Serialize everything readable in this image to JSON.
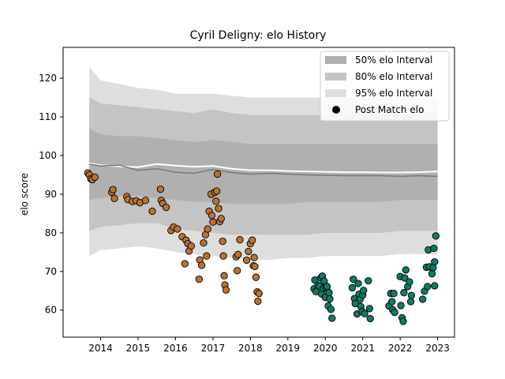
{
  "chart_data": {
    "type": "scatter",
    "title": "Cyril Deligny: elo History",
    "xlabel": "",
    "ylabel": "elo score",
    "xlim": [
      2013.0,
      2023.45
    ],
    "ylim": [
      53.0,
      128.0
    ],
    "xticks": [
      2014,
      2015,
      2016,
      2017,
      2018,
      2019,
      2020,
      2021,
      2022,
      2023
    ],
    "yticks": [
      60,
      70,
      80,
      90,
      100,
      110,
      120
    ],
    "grid": false,
    "legend_position": "top-right",
    "legend": [
      {
        "label": "50% elo Interval",
        "kind": "band",
        "color": "#b0b0b0"
      },
      {
        "label": "80% elo Interval",
        "kind": "band",
        "color": "#c4c4c4"
      },
      {
        "label": "95% elo Interval",
        "kind": "band",
        "color": "#dedede"
      },
      {
        "label": "Post Match elo",
        "kind": "marker",
        "color": "#000000"
      }
    ],
    "bands": {
      "x": [
        2013.7,
        2014.0,
        2014.5,
        2015.0,
        2015.5,
        2016.0,
        2016.5,
        2017.0,
        2017.5,
        2018.0,
        2018.5,
        2019.0,
        2019.5,
        2020.0,
        2020.5,
        2021.0,
        2021.5,
        2022.0,
        2022.5,
        2023.0
      ],
      "p95_upper": [
        123,
        119.5,
        118.5,
        117.5,
        117,
        116,
        116,
        116,
        115.5,
        115,
        115,
        115,
        115,
        115,
        115,
        115,
        114.5,
        114.5,
        115,
        115
      ],
      "p95_lower": [
        74,
        75.5,
        76,
        76.5,
        76,
        75,
        74.5,
        74,
        73.5,
        73,
        73,
        73.5,
        73.5,
        74,
        74,
        74,
        74,
        74.5,
        74.5,
        74.5
      ],
      "p80_upper": [
        115,
        113.5,
        113,
        112.5,
        112,
        111.5,
        111,
        112,
        111,
        110.5,
        110.5,
        110.5,
        110.5,
        110.5,
        110.5,
        110.5,
        110.5,
        110.5,
        111,
        111
      ],
      "p80_lower": [
        80.5,
        81.5,
        82,
        82.5,
        82.5,
        81,
        80.5,
        80,
        79.5,
        79.5,
        79.5,
        79.5,
        79.5,
        80,
        80,
        80,
        80,
        80.5,
        80.5,
        80.5
      ],
      "p50_upper": [
        107,
        105.5,
        105,
        105,
        104.5,
        104,
        103.5,
        104,
        103.5,
        103,
        103,
        103,
        103,
        103,
        103,
        103,
        103,
        103,
        103,
        103
      ],
      "p50_lower": [
        88.5,
        89,
        89.5,
        89.5,
        89,
        88.5,
        88,
        88,
        87.5,
        87.5,
        87.5,
        87.5,
        88,
        88,
        88,
        88,
        88,
        88.5,
        88.5,
        88.5
      ]
    },
    "lines": [
      {
        "name": "white",
        "color": "#ffffff",
        "x": [
          2013.7,
          2014.0,
          2014.5,
          2015.0,
          2015.5,
          2016.0,
          2016.5,
          2017.0,
          2017.5,
          2018.0,
          2018.5,
          2019.0,
          2019.5,
          2020.0,
          2020.5,
          2021.0,
          2021.5,
          2022.0,
          2022.5,
          2023.0
        ],
        "y": [
          98,
          97.5,
          97.2,
          97,
          97.8,
          97.4,
          97.1,
          97.3,
          96.6,
          96.2,
          96.2,
          96.0,
          95.9,
          95.8,
          95.7,
          95.7,
          95.6,
          95.6,
          95.7,
          95.9
        ]
      },
      {
        "name": "grey",
        "color": "#777777",
        "x": [
          2013.7,
          2014.0,
          2014.5,
          2015.0,
          2015.5,
          2016.0,
          2016.5,
          2017.0,
          2017.5,
          2018.0,
          2018.5,
          2019.0,
          2019.5,
          2020.0,
          2020.5,
          2021.0,
          2021.5,
          2022.0,
          2022.5,
          2023.0
        ],
        "y": [
          97.8,
          97.3,
          97.5,
          96.2,
          96.6,
          95.7,
          95.4,
          96.4,
          95.6,
          95.2,
          95.4,
          95.2,
          95.0,
          94.9,
          94.8,
          94.8,
          94.8,
          94.6,
          94.8,
          94.6
        ]
      }
    ],
    "series": [
      {
        "color": "#b87333",
        "x": [
          2013.66,
          2013.7,
          2013.74,
          2013.78,
          2013.85,
          2014.3,
          2014.33,
          2014.37,
          2014.7,
          2014.73,
          2014.85,
          2014.95,
          2015.05,
          2015.2,
          2015.38,
          2015.6,
          2015.62,
          2015.66,
          2015.75,
          2015.88,
          2015.95,
          2016.05,
          2016.18,
          2016.25,
          2016.28,
          2016.33,
          2016.36,
          2016.42,
          2016.63,
          2016.65,
          2016.7,
          2016.75,
          2016.8,
          2016.83,
          2016.86,
          2016.9,
          2016.95,
          2016.97,
          2017.0,
          2017.05,
          2017.08,
          2017.1,
          2017.12,
          2017.15,
          2017.18,
          2017.22,
          2017.26,
          2017.28,
          2017.3,
          2017.32,
          2017.35,
          2017.62,
          2017.65,
          2017.67,
          2017.72,
          2017.9,
          2017.95,
          2018.0,
          2018.05,
          2018.08,
          2018.1,
          2018.12,
          2018.15,
          2018.18,
          2018.2,
          2018.23
        ],
        "y": [
          95.5,
          95.0,
          94.0,
          93.8,
          94.4,
          90.5,
          91.2,
          88.9,
          89.4,
          88.6,
          88.1,
          88.3,
          87.8,
          88.4,
          85.6,
          91.3,
          88.4,
          87.6,
          86.6,
          80.6,
          81.5,
          81.0,
          79.0,
          72.0,
          78.1,
          77.2,
          75.3,
          76.6,
          68.0,
          73.0,
          71.6,
          77.4,
          79.5,
          74.0,
          81.0,
          85.6,
          90.0,
          84.5,
          82.8,
          90.5,
          88.2,
          90.8,
          95.2,
          86.3,
          82.9,
          83.7,
          77.8,
          74.0,
          68.9,
          66.5,
          65.2,
          73.8,
          70.2,
          74.4,
          78.2,
          72.9,
          75.2,
          77.2,
          78.1,
          71.5,
          73.6,
          71.3,
          68.5,
          64.7,
          62.3,
          64.3
        ]
      },
      {
        "color": "#117a65",
        "x": [
          2019.7,
          2019.72,
          2019.75,
          2019.8,
          2019.85,
          2019.88,
          2019.9,
          2019.92,
          2019.95,
          2019.97,
          2020.0,
          2020.02,
          2020.05,
          2020.08,
          2020.1,
          2020.12,
          2020.15,
          2020.18,
          2020.72,
          2020.75,
          2020.78,
          2020.8,
          2020.85,
          2020.88,
          2020.9,
          2020.93,
          2020.95,
          2020.98,
          2021.0,
          2021.02,
          2021.05,
          2021.15,
          2021.18,
          2021.2,
          2021.7,
          2021.75,
          2021.78,
          2021.8,
          2021.83,
          2021.85,
          2022.0,
          2022.02,
          2022.05,
          2022.08,
          2022.1,
          2022.12,
          2022.15,
          2022.2,
          2022.25,
          2022.28,
          2022.6,
          2022.65,
          2022.7,
          2022.73,
          2022.75,
          2022.78,
          2022.85,
          2022.88,
          2022.92,
          2022.95
        ],
        "y": [
          65.5,
          67.8,
          64.8,
          66.4,
          66.2,
          68.3,
          64.2,
          68.8,
          65.6,
          67.5,
          63.3,
          65.8,
          66.1,
          61.1,
          64.5,
          62.9,
          60.2,
          57.9,
          65.8,
          68.0,
          63.0,
          61.7,
          59.0,
          66.9,
          64.1,
          62.8,
          60.9,
          59.6,
          63.9,
          65.1,
          59.1,
          67.6,
          60.4,
          57.8,
          61.1,
          64.3,
          62.2,
          60.1,
          64.3,
          59.4,
          68.7,
          61.2,
          58.0,
          57.1,
          64.5,
          68.3,
          70.4,
          66.1,
          67.3,
          62.2,
          62.8,
          64.9,
          71.1,
          66.1,
          75.6,
          71.2,
          69.4,
          71.0,
          66.3,
          79.2
        ]
      }
    ],
    "extra_points": [
      {
        "x": 2022.92,
        "y": 72.5,
        "color": "#117a65"
      },
      {
        "x": 2022.9,
        "y": 76.0,
        "color": "#117a65"
      },
      {
        "x": 2022.3,
        "y": 63.8,
        "color": "#117a65"
      }
    ]
  }
}
